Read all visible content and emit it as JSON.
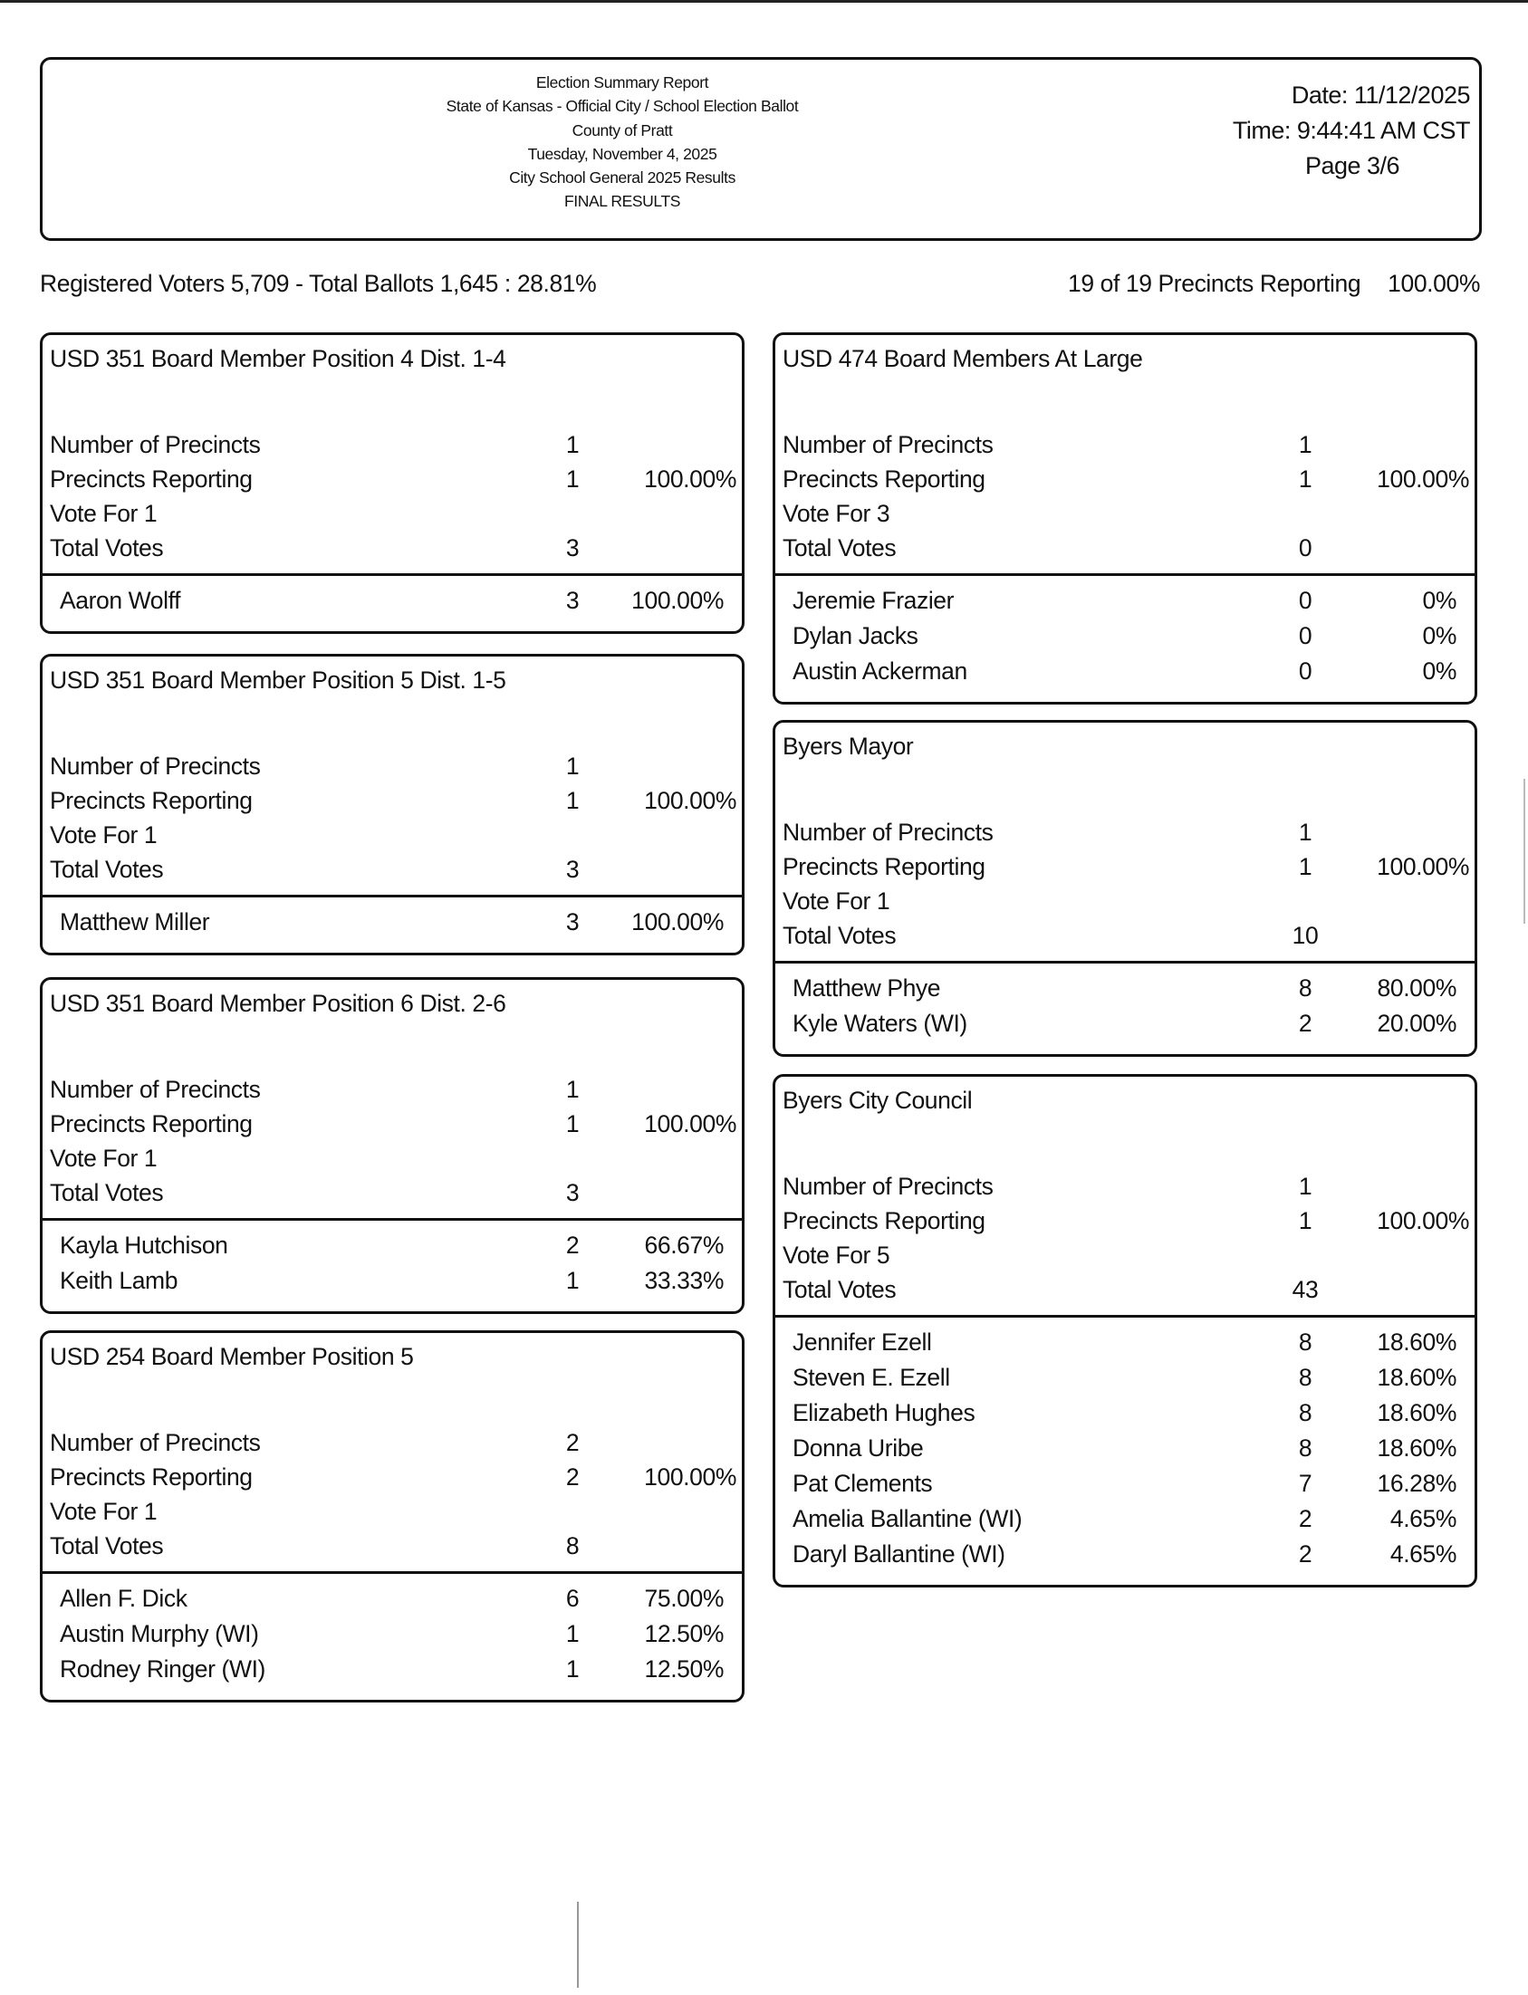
{
  "header": {
    "lines": [
      "Election Summary Report",
      "State of Kansas - Official City / School Election Ballot",
      "County of Pratt",
      "Tuesday, November 4, 2025",
      "City School General 2025 Results",
      "FINAL RESULTS"
    ],
    "date": "Date: 11/12/2025",
    "time": "Time: 9:44:41 AM CST",
    "page": "Page 3/6"
  },
  "summary": {
    "left": "Registered Voters 5,709 - Total Ballots 1,645 : 28.81%",
    "precincts": "19 of 19 Precincts Reporting",
    "percent": "100.00%"
  },
  "labels": {
    "num_precincts": "Number of Precincts",
    "precincts_reporting": "Precincts Reporting",
    "total_votes": "Total Votes"
  },
  "contests": [
    {
      "title": "USD 351 Board Member Position 4 Dist. 1-4",
      "precincts": "1",
      "reporting": "1",
      "reporting_pct": "100.00%",
      "vote_for": "Vote For 1",
      "total": "3",
      "candidates": [
        {
          "name": "Aaron Wolff",
          "votes": "3",
          "pct": "100.00%"
        }
      ]
    },
    {
      "title": "USD 351 Board Member Position 5 Dist. 1-5",
      "precincts": "1",
      "reporting": "1",
      "reporting_pct": "100.00%",
      "vote_for": "Vote For 1",
      "total": "3",
      "candidates": [
        {
          "name": "Matthew Miller",
          "votes": "3",
          "pct": "100.00%"
        }
      ]
    },
    {
      "title": "USD 351 Board Member Position 6 Dist. 2-6",
      "precincts": "1",
      "reporting": "1",
      "reporting_pct": "100.00%",
      "vote_for": "Vote For 1",
      "total": "3",
      "candidates": [
        {
          "name": "Kayla Hutchison",
          "votes": "2",
          "pct": "66.67%"
        },
        {
          "name": "Keith Lamb",
          "votes": "1",
          "pct": "33.33%"
        }
      ]
    },
    {
      "title": "USD 254 Board Member Position 5",
      "precincts": "2",
      "reporting": "2",
      "reporting_pct": "100.00%",
      "vote_for": "Vote For 1",
      "total": "8",
      "candidates": [
        {
          "name": "Allen F. Dick",
          "votes": "6",
          "pct": "75.00%"
        },
        {
          "name": "Austin Murphy  (WI)",
          "votes": "1",
          "pct": "12.50%"
        },
        {
          "name": "Rodney Ringer  (WI)",
          "votes": "1",
          "pct": "12.50%"
        }
      ]
    },
    {
      "title": "USD 474 Board Members At Large",
      "precincts": "1",
      "reporting": "1",
      "reporting_pct": "100.00%",
      "vote_for": "Vote For 3",
      "total": "0",
      "candidates": [
        {
          "name": "Jeremie Frazier",
          "votes": "0",
          "pct": "0%"
        },
        {
          "name": "Dylan Jacks",
          "votes": "0",
          "pct": "0%"
        },
        {
          "name": "Austin Ackerman",
          "votes": "0",
          "pct": "0%"
        }
      ]
    },
    {
      "title": "Byers Mayor",
      "precincts": "1",
      "reporting": "1",
      "reporting_pct": "100.00%",
      "vote_for": "Vote For 1",
      "total": "10",
      "candidates": [
        {
          "name": "Matthew Phye",
          "votes": "8",
          "pct": "80.00%"
        },
        {
          "name": "Kyle Waters  (WI)",
          "votes": "2",
          "pct": "20.00%"
        }
      ]
    },
    {
      "title": "Byers City Council",
      "precincts": "1",
      "reporting": "1",
      "reporting_pct": "100.00%",
      "vote_for": "Vote For 5",
      "total": "43",
      "candidates": [
        {
          "name": "Jennifer Ezell",
          "votes": "8",
          "pct": "18.60%"
        },
        {
          "name": "Steven E. Ezell",
          "votes": "8",
          "pct": "18.60%"
        },
        {
          "name": "Elizabeth Hughes",
          "votes": "8",
          "pct": "18.60%"
        },
        {
          "name": "Donna Uribe",
          "votes": "8",
          "pct": "18.60%"
        },
        {
          "name": "Pat Clements",
          "votes": "7",
          "pct": "16.28%"
        },
        {
          "name": "Amelia Ballantine  (WI)",
          "votes": "2",
          "pct": "4.65%"
        },
        {
          "name": "Daryl Ballantine  (WI)",
          "votes": "2",
          "pct": "4.65%"
        }
      ]
    }
  ]
}
